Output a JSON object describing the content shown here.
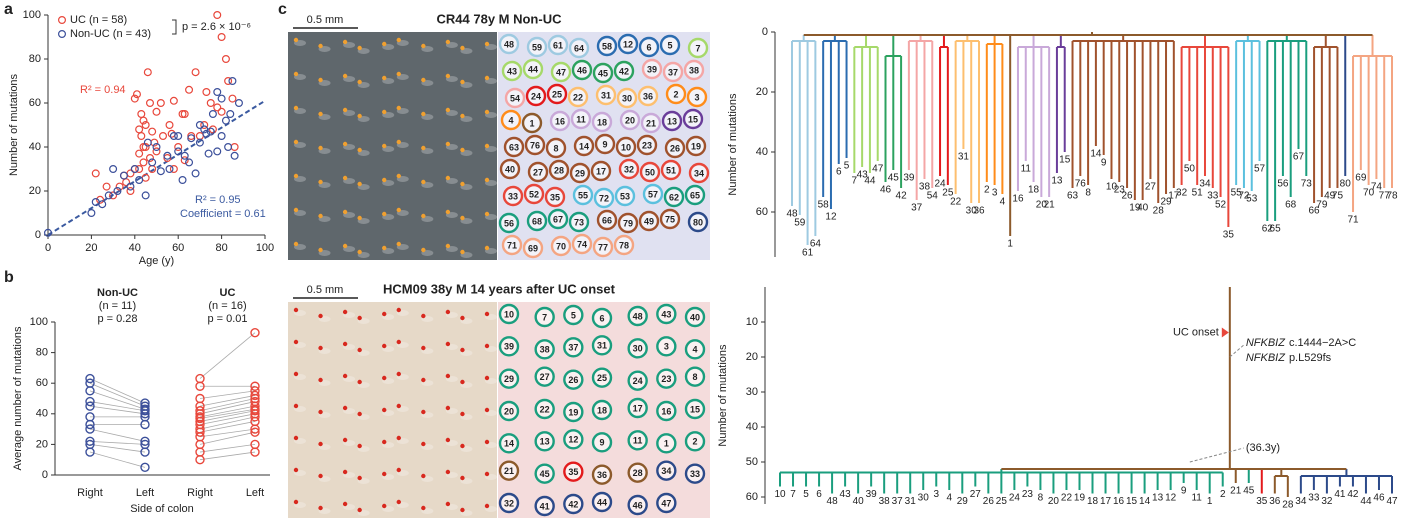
{
  "chart_data": [
    {
      "type": "scatter",
      "panel": "a",
      "xlabel": "Age (y)",
      "ylabel": "Number of mutations",
      "xlim": [
        0,
        100
      ],
      "ylim": [
        0,
        100
      ],
      "xticks": [
        0,
        20,
        40,
        60,
        80,
        100
      ],
      "yticks": [
        0,
        20,
        40,
        60,
        80,
        100
      ],
      "series": [
        {
          "name": "UC (n = 58)",
          "color": "#e8473b",
          "x": [
            22,
            24,
            27,
            30,
            33,
            35,
            36,
            38,
            38,
            40,
            40,
            41,
            42,
            42,
            43,
            43,
            44,
            44,
            45,
            45,
            45,
            46,
            47,
            48,
            48,
            49,
            50,
            50,
            52,
            53,
            55,
            56,
            57,
            58,
            58,
            60,
            62,
            63,
            63,
            65,
            66,
            68,
            70,
            72,
            73,
            75,
            76,
            78,
            78,
            80,
            80,
            82,
            83,
            85,
            86,
            44,
            42,
            47
          ],
          "y": [
            28,
            16,
            22,
            18,
            22,
            27,
            24,
            28,
            20,
            30,
            62,
            64,
            48,
            37,
            55,
            45,
            33,
            40,
            40,
            50,
            26,
            74,
            60,
            47,
            30,
            42,
            38,
            56,
            60,
            45,
            35,
            50,
            46,
            61,
            30,
            40,
            55,
            34,
            55,
            66,
            45,
            74,
            45,
            50,
            65,
            60,
            48,
            58,
            100,
            56,
            90,
            80,
            70,
            62,
            40,
            52,
            30,
            35
          ]
        },
        {
          "name": "Non-UC (n = 43)",
          "color": "#3b4f9a",
          "x": [
            0,
            20,
            22,
            25,
            28,
            30,
            32,
            35,
            38,
            40,
            42,
            45,
            48,
            50,
            52,
            55,
            58,
            60,
            62,
            63,
            65,
            66,
            68,
            70,
            72,
            73,
            74,
            75,
            76,
            78,
            78,
            80,
            80,
            82,
            83,
            84,
            85,
            86,
            88,
            70,
            60,
            56,
            46
          ],
          "y": [
            1,
            10,
            15,
            14,
            18,
            30,
            20,
            27,
            22,
            30,
            25,
            18,
            33,
            40,
            29,
            36,
            45,
            38,
            25,
            36,
            33,
            44,
            28,
            50,
            48,
            46,
            37,
            47,
            55,
            38,
            65,
            62,
            45,
            52,
            40,
            55,
            70,
            36,
            60,
            42,
            45,
            30,
            42
          ]
        }
      ],
      "fit_line": {
        "x": [
          0,
          100
        ],
        "y": [
          0,
          61
        ],
        "color": "#3b5aa0"
      },
      "annotations": [
        {
          "text": "p = 2.6 × 10⁻⁶",
          "color": "#222"
        },
        {
          "text": "R² = 0.94",
          "color": "#e8473b"
        },
        {
          "text": "R² = 0.95",
          "color": "#3b5aa0"
        },
        {
          "text": "Coefficient = 0.61",
          "color": "#3b5aa0"
        }
      ]
    },
    {
      "type": "paired",
      "panel": "b",
      "ylabel": "Average number of mutations",
      "xlabel": "Side of colon",
      "ylim": [
        0,
        100
      ],
      "yticks": [
        0,
        20,
        40,
        60,
        80,
        100
      ],
      "groups": [
        {
          "name": "Non-UC",
          "n_label": "(n = 11)",
          "p_label": "p = 0.28",
          "color": "#3b4f9a",
          "categories": [
            "Right",
            "Left"
          ],
          "right": [
            63,
            60,
            55,
            48,
            45,
            38,
            33,
            30,
            22,
            20,
            15
          ],
          "left": [
            47,
            45,
            43,
            42,
            40,
            38,
            33,
            22,
            20,
            15,
            5
          ]
        },
        {
          "name": "UC",
          "n_label": "(n = 16)",
          "p_label": "p = 0.01",
          "color": "#e8473b",
          "categories": [
            "Right",
            "Left"
          ],
          "right": [
            63,
            58,
            50,
            45,
            42,
            40,
            38,
            37,
            35,
            33,
            30,
            28,
            25,
            20,
            15,
            10
          ],
          "left": [
            93,
            58,
            55,
            52,
            50,
            48,
            45,
            43,
            42,
            40,
            38,
            35,
            30,
            28,
            20,
            15
          ]
        }
      ]
    },
    {
      "type": "tree",
      "ylabel": "Number of mutations",
      "ylim": [
        0,
        75
      ],
      "yticks": [
        0,
        20,
        40,
        60
      ],
      "root": 1,
      "trunk": [
        0,
        1
      ],
      "root_color": "#8c5a2b",
      "groups": [
        {
          "color": "#9ecae1",
          "node": 3,
          "leaves": [
            "48",
            "59",
            "61",
            "64"
          ],
          "depths": [
            58,
            61,
            71,
            68
          ]
        },
        {
          "color": "#2b6cb0",
          "node": 3,
          "leaves": [
            "58",
            "12",
            "6",
            "5"
          ],
          "depths": [
            55,
            59,
            44,
            42
          ]
        },
        {
          "color": "#a6d96a",
          "node": 5,
          "leaves": [
            "7",
            "43",
            "44",
            "47"
          ],
          "depths": [
            47,
            45,
            47,
            43
          ]
        },
        {
          "color": "#2ca25f",
          "node": 8,
          "leaves": [
            "46",
            "45",
            "42"
          ],
          "depths": [
            50,
            46,
            52
          ]
        },
        {
          "color": "#f4a6a6",
          "node": 3,
          "leaves": [
            "39",
            "37",
            "38",
            "54"
          ],
          "depths": [
            46,
            56,
            49,
            52
          ]
        },
        {
          "color": "#e31a1c",
          "node": 5,
          "leaves": [
            "24",
            "25"
          ],
          "depths": [
            48,
            51
          ]
        },
        {
          "color": "#fdbf6f",
          "node": 3,
          "leaves": [
            "22",
            "31",
            "30",
            "36"
          ],
          "depths": [
            54,
            39,
            57,
            57
          ]
        },
        {
          "color": "#ff8c1a",
          "node": 4,
          "leaves": [
            "2",
            "3",
            "4"
          ],
          "depths": [
            50,
            51,
            54
          ]
        },
        {
          "color": "#8c5a2b",
          "node": 3,
          "leaves": [
            "1"
          ],
          "depths": [
            68
          ]
        },
        {
          "color": "#c9a9d9",
          "node": 5,
          "leaves": [
            "16",
            "11",
            "18",
            "20",
            "21"
          ],
          "depths": [
            53,
            43,
            50,
            55,
            55
          ]
        },
        {
          "color": "#6a3d9a",
          "node": 5,
          "leaves": [
            "13",
            "15"
          ],
          "depths": [
            47,
            40
          ]
        },
        {
          "color": "#a0522d",
          "node": 3,
          "leaves": [
            "63",
            "76",
            "8",
            "14",
            "9",
            "10",
            "23",
            "26",
            "19",
            "40",
            "27",
            "28",
            "29",
            "17"
          ],
          "depths": [
            52,
            48,
            51,
            38,
            41,
            49,
            50,
            52,
            56,
            56,
            49,
            57,
            54,
            52
          ]
        },
        {
          "color": "#e8473b",
          "node": 5,
          "leaves": [
            "32",
            "50",
            "51",
            "34",
            "33",
            "52",
            "35"
          ],
          "depths": [
            51,
            43,
            51,
            48,
            52,
            55,
            65
          ]
        },
        {
          "color": "#5bc0de",
          "node": 3,
          "leaves": [
            "55",
            "72",
            "53",
            "57"
          ],
          "depths": [
            51,
            52,
            53,
            43
          ]
        },
        {
          "color": "#1a9e7e",
          "node": 3,
          "leaves": [
            "62",
            "65",
            "56",
            "68",
            "67",
            "73"
          ],
          "depths": [
            63,
            63,
            48,
            55,
            39,
            48
          ]
        },
        {
          "color": "#a0522d",
          "node": 5,
          "leaves": [
            "66",
            "79",
            "49",
            "75"
          ],
          "depths": [
            57,
            55,
            52,
            52
          ]
        },
        {
          "color": "#2c4a8a",
          "node": 35,
          "leaves": [
            "80"
          ],
          "depths": [
            48
          ]
        },
        {
          "color": "#f4a582",
          "node": 8,
          "leaves": [
            "71",
            "69",
            "70",
            "74",
            "77",
            "78"
          ],
          "depths": [
            60,
            46,
            51,
            49,
            52,
            52
          ]
        }
      ]
    },
    {
      "type": "tree",
      "ylabel": "Number of mutations",
      "ylim": [
        0,
        62
      ],
      "yticks": [
        10,
        20,
        30,
        40,
        50,
        60
      ],
      "root": 52,
      "trunk": [
        0,
        52
      ],
      "root_color": "#8c5a2b",
      "onset": {
        "label": "UC onset",
        "value": 13,
        "color": "#e8473b"
      },
      "mutation": {
        "gene": "NFKBIZ",
        "variants": [
          "c.1444−2A>C",
          "p.L529fs"
        ],
        "value": 20
      },
      "age_note": {
        "label": "(36.3y)",
        "value": 46
      },
      "groups": [
        {
          "color": "#1a9e7e",
          "node": 53,
          "leaves": [
            "10",
            "7",
            "5",
            "6",
            "48",
            "43",
            "40",
            "39",
            "38",
            "37",
            "31",
            "30",
            "3",
            "4",
            "29",
            "27",
            "26",
            "25",
            "24",
            "23",
            "8",
            "20",
            "22",
            "19",
            "18",
            "17",
            "16",
            "15",
            "14",
            "13",
            "12",
            "9",
            "11",
            "1",
            "2"
          ],
          "depths": [
            57,
            57,
            57,
            57,
            59,
            57,
            59,
            57,
            59,
            59,
            59,
            58,
            57,
            58,
            59,
            57,
            59,
            59,
            58,
            57,
            58,
            59,
            58,
            58,
            59,
            59,
            59,
            59,
            59,
            58,
            58,
            56,
            58,
            59,
            57
          ]
        },
        {
          "color": "#8c5a2b",
          "node": 53,
          "leaves": [
            "21"
          ],
          "depths": [
            56
          ]
        },
        {
          "color": "#1a9e7e",
          "node": 53,
          "leaves": [
            "45"
          ],
          "depths": [
            56
          ]
        },
        {
          "color": "#e31a1c",
          "node": 55,
          "leaves": [
            "35"
          ],
          "depths": [
            59
          ]
        },
        {
          "color": "#8c5a2b",
          "node": 54,
          "leaves": [
            "36",
            "28"
          ],
          "depths": [
            59,
            60
          ]
        },
        {
          "color": "#2c4a8a",
          "node": 54,
          "leaves": [
            "34",
            "33",
            "32",
            "41",
            "42",
            "44",
            "46",
            "47"
          ],
          "depths": [
            59,
            58,
            59,
            57,
            57,
            59,
            58,
            59
          ]
        }
      ]
    }
  ],
  "photos": [
    {
      "panel": "c",
      "title": "CR44 78y M  Non-UC",
      "scale": "0.5 mm",
      "background": "#e0e1f1"
    },
    {
      "title": "HCM09 38y M  14 years after UC onset",
      "scale": "0.5 mm",
      "background": "#f4dcdc"
    }
  ]
}
